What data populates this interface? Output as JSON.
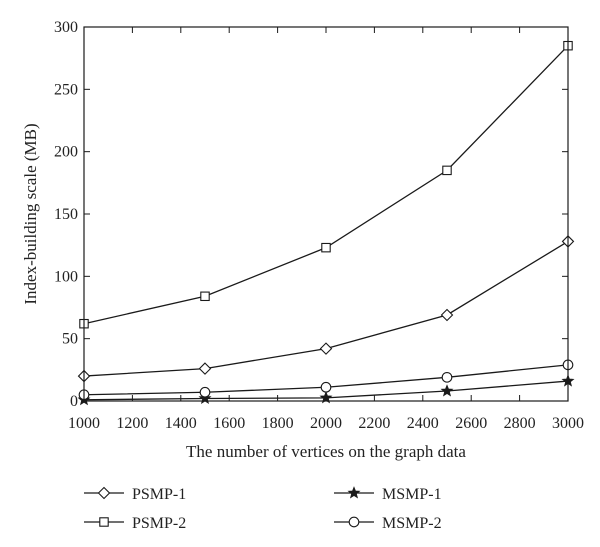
{
  "chart_data": {
    "type": "line",
    "title": "",
    "xlabel": "The number of vertices on the graph data",
    "ylabel": "Index-building scale (MB)",
    "xlim": [
      1000,
      3000
    ],
    "ylim": [
      0,
      300
    ],
    "xticks": [
      1000,
      1200,
      1400,
      1600,
      1800,
      2000,
      2200,
      2400,
      2600,
      2800,
      3000
    ],
    "yticks": [
      0,
      50,
      100,
      150,
      200,
      250,
      300
    ],
    "grid": false,
    "legend_position": "bottom",
    "line_color": "#1a1a1a",
    "series": [
      {
        "name": "PSMP-1",
        "marker": "diamond",
        "x": [
          1000,
          1500,
          2000,
          2500,
          3000
        ],
        "values": [
          20,
          26,
          42,
          69,
          128
        ]
      },
      {
        "name": "PSMP-2",
        "marker": "square",
        "x": [
          1000,
          1500,
          2000,
          2500,
          3000
        ],
        "values": [
          62,
          84,
          123,
          185,
          285
        ]
      },
      {
        "name": "MSMP-1",
        "marker": "star",
        "x": [
          1000,
          1500,
          2000,
          2500,
          3000
        ],
        "values": [
          1,
          2,
          2.5,
          8,
          16
        ]
      },
      {
        "name": "MSMP-2",
        "marker": "circle",
        "x": [
          1000,
          1500,
          2000,
          2500,
          3000
        ],
        "values": [
          5,
          7,
          11,
          19,
          29
        ]
      }
    ]
  }
}
